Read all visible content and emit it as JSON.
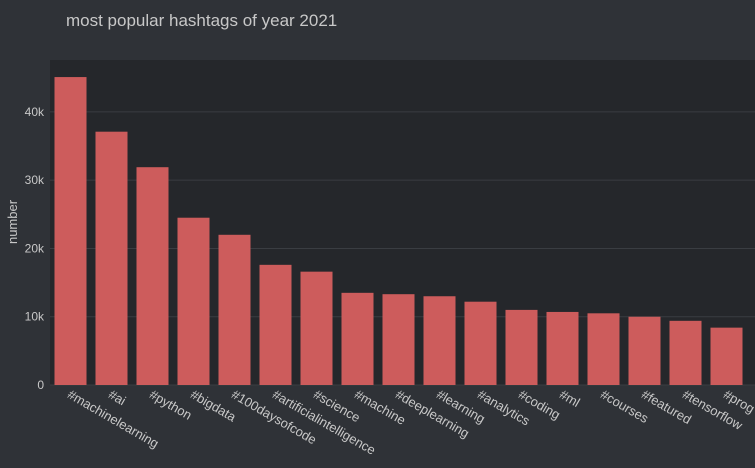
{
  "chart_data": {
    "type": "bar",
    "title": "most popular hashtags of year 2021",
    "y_label": "number",
    "categories": [
      "#machinelearning",
      "#ai",
      "#python",
      "#bigdata",
      "#100daysofcode",
      "#artificialintelligence",
      "#science",
      "#machine",
      "#deeplearning",
      "#learning",
      "#analytics",
      "#coding",
      "#ml",
      "#courses",
      "#featured",
      "#tensorflow",
      "#prog"
    ],
    "values": [
      45100,
      37100,
      31900,
      24500,
      22000,
      17600,
      16600,
      13500,
      13300,
      13000,
      12200,
      11000,
      10700,
      10500,
      10000,
      9400,
      8400
    ],
    "color": "#cd5c5c",
    "ylim": [
      0,
      47600
    ],
    "yticks": [
      0,
      {
        "value": 10000,
        "label": "10k"
      },
      {
        "value": 20000,
        "label": "20k"
      },
      {
        "value": 30000,
        "label": "30k"
      },
      {
        "value": 40000,
        "label": "40k"
      }
    ],
    "grid": true
  }
}
